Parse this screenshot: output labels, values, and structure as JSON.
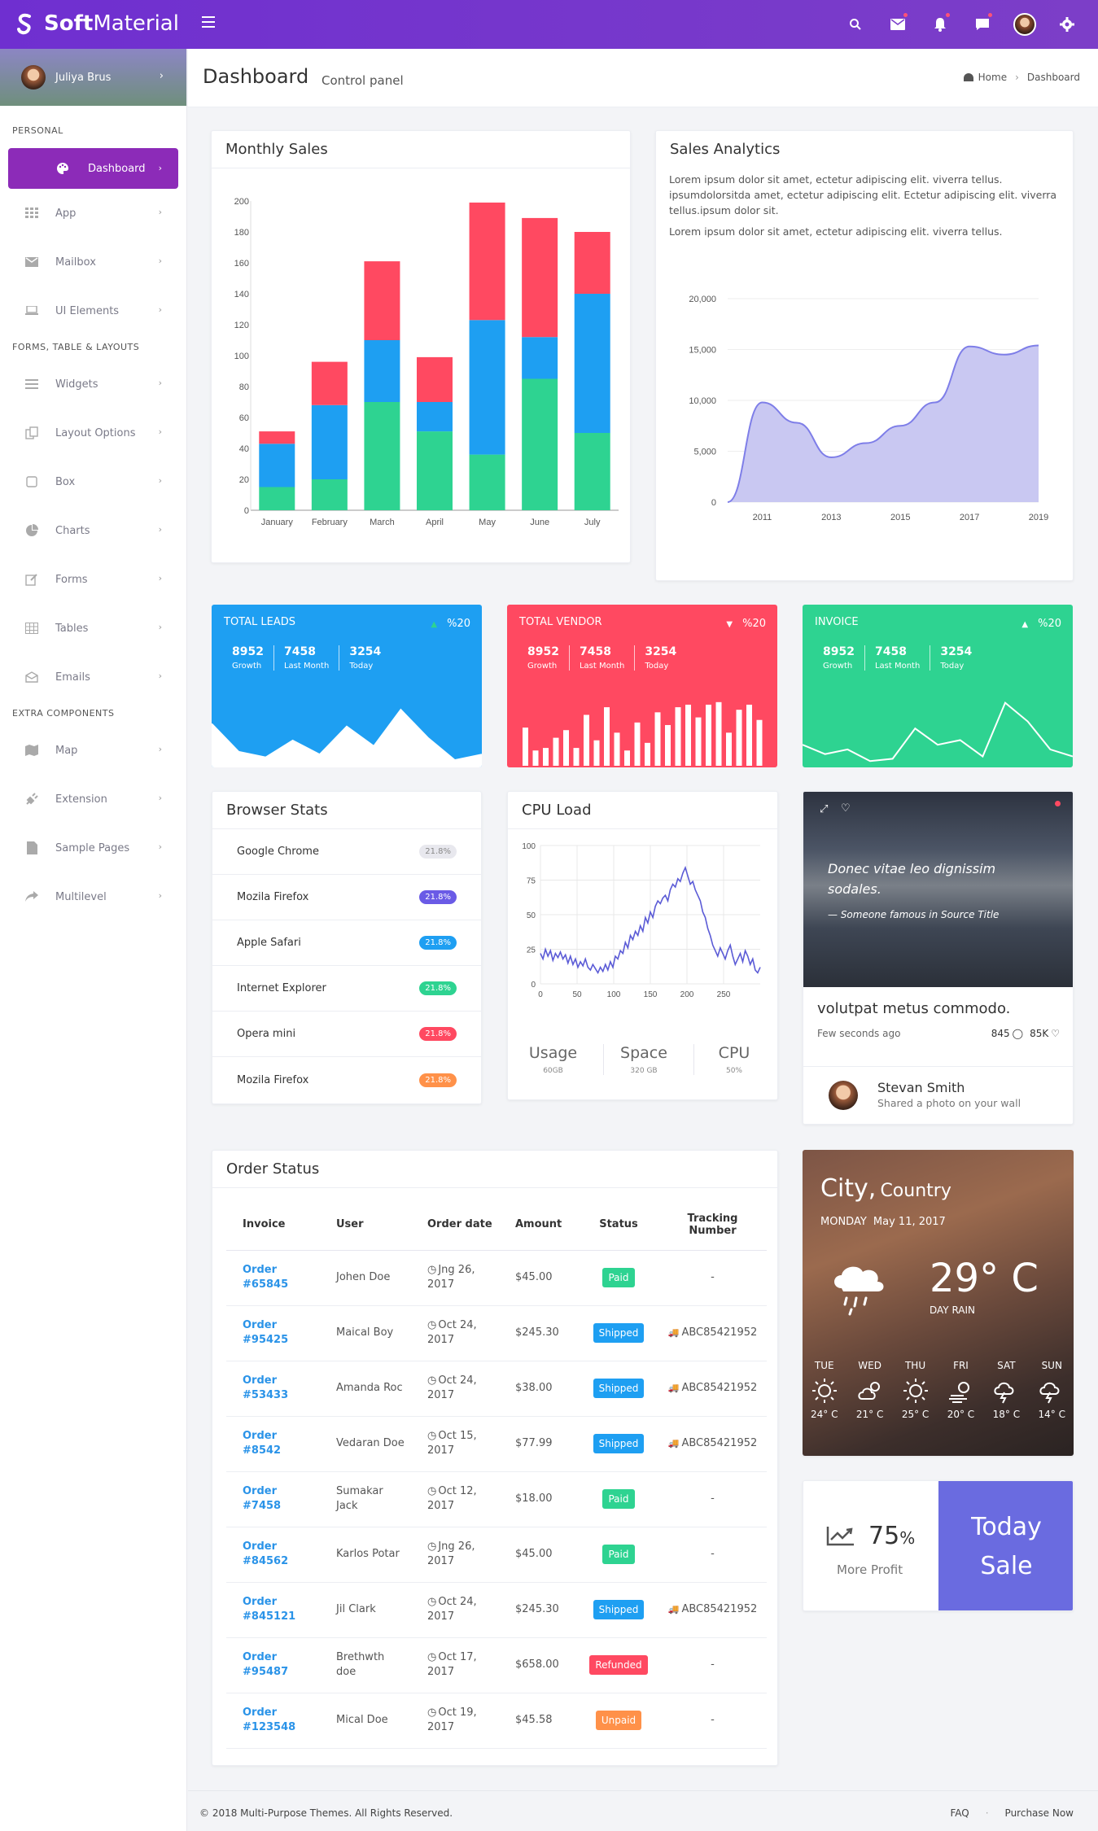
{
  "app": {
    "logo_bold": "Soft",
    "logo_light": "Material"
  },
  "topbar": {
    "icons": [
      "search-icon",
      "mail-icon",
      "bell-icon",
      "chat-icon",
      "avatar",
      "gear-icon"
    ]
  },
  "user": {
    "name": "Juliya Brus"
  },
  "sidebar": {
    "sections": [
      "PERSONAL",
      "FORMS, TABLE & LAYOUTS",
      "EXTRA COMPONENTS"
    ],
    "personal": [
      {
        "label": "Dashboard",
        "icon": "palette-icon"
      },
      {
        "label": "App",
        "icon": "grid-icon"
      },
      {
        "label": "Mailbox",
        "icon": "mail-icon"
      },
      {
        "label": "UI Elements",
        "icon": "laptop-icon"
      }
    ],
    "forms": [
      {
        "label": "Widgets",
        "icon": "list-icon"
      },
      {
        "label": "Layout Options",
        "icon": "copy-icon"
      },
      {
        "label": "Box",
        "icon": "square-icon"
      },
      {
        "label": "Charts",
        "icon": "pie-icon"
      },
      {
        "label": "Forms",
        "icon": "edit-icon"
      },
      {
        "label": "Tables",
        "icon": "table-icon"
      },
      {
        "label": "Emails",
        "icon": "envelope-open-icon"
      }
    ],
    "extra": [
      {
        "label": "Map",
        "icon": "map-icon"
      },
      {
        "label": "Extension",
        "icon": "plug-icon"
      },
      {
        "label": "Sample Pages",
        "icon": "file-icon"
      },
      {
        "label": "Multilevel",
        "icon": "share-icon"
      }
    ]
  },
  "header": {
    "title": "Dashboard",
    "subtitle": "Control panel",
    "breadcrumb": [
      "Home",
      "Dashboard"
    ]
  },
  "monthly_sales": {
    "title": "Monthly Sales"
  },
  "sales_analytics": {
    "title": "Sales Analytics",
    "para1": "Lorem ipsum dolor sit amet, ectetur adipiscing elit. viverra tellus. ipsumdolorsitda amet, ectetur adipiscing elit. Ectetur adipiscing elit. viverra tellus.ipsum dolor sit.",
    "para2": "Lorem ipsum dolor sit amet, ectetur adipiscing elit. viverra tellus."
  },
  "chart_data": [
    {
      "type": "bar",
      "stacked": true,
      "categories": [
        "January",
        "February",
        "March",
        "April",
        "May",
        "June",
        "July"
      ],
      "series": [
        {
          "values": [
            15,
            20,
            70,
            51,
            36,
            85,
            50
          ],
          "color": "#2ed391"
        },
        {
          "values": [
            28,
            48,
            40,
            19,
            87,
            27,
            90
          ],
          "color": "#1e9ff2"
        },
        {
          "values": [
            8,
            28,
            51,
            29,
            76,
            77,
            40
          ],
          "color": "#ff4961"
        }
      ],
      "yticks": [
        0,
        20,
        40,
        60,
        80,
        100,
        120,
        140,
        160,
        180,
        200
      ],
      "ylim": [
        0,
        200
      ]
    },
    {
      "type": "area",
      "x": [
        2010,
        2011,
        2012,
        2013,
        2014,
        2015,
        2016,
        2017,
        2018,
        2019
      ],
      "values": [
        0,
        9800,
        7800,
        4400,
        5800,
        7500,
        9800,
        15300,
        14500,
        15400
      ],
      "xticks": [
        "2011",
        "2013",
        "2015",
        "2017",
        "2019"
      ],
      "yticks": [
        "0",
        "5,000",
        "10,000",
        "15,000",
        "20,000"
      ],
      "ylim": [
        0,
        20000
      ],
      "color": "#7e7ee8"
    },
    {
      "type": "line",
      "yticks": [
        0,
        25,
        50,
        75,
        100
      ],
      "xticks": [
        0,
        50,
        100,
        150,
        200,
        250
      ],
      "ylim": [
        0,
        100
      ],
      "xlim": [
        0,
        300
      ],
      "color": "#5b5bd6",
      "values": [
        22,
        18,
        25,
        20,
        24,
        17,
        22,
        19,
        23,
        18,
        21,
        15,
        20,
        14,
        18,
        12,
        16,
        13,
        18,
        12,
        10,
        14,
        11,
        8,
        12,
        9,
        14,
        10,
        16,
        12,
        20,
        18,
        24,
        22,
        30,
        26,
        35,
        32,
        38,
        35,
        42,
        38,
        48,
        44,
        52,
        48,
        56,
        60,
        58,
        62,
        64,
        60,
        68,
        72,
        70,
        76,
        74,
        80,
        84,
        78,
        72,
        74,
        68,
        64,
        60,
        52,
        48,
        40,
        35,
        28,
        24,
        20,
        26,
        22,
        18,
        24,
        28,
        20,
        14,
        18,
        22,
        16,
        24,
        20,
        14,
        18,
        10,
        8,
        12
      ]
    },
    {
      "type": "area",
      "name": "TOTAL LEADS",
      "values": [
        30,
        10,
        6,
        18,
        8,
        28,
        14,
        40,
        20,
        4,
        8
      ],
      "ylim": [
        0,
        50
      ]
    },
    {
      "type": "bar",
      "name": "TOTAL VENDOR",
      "values": [
        30,
        12,
        14,
        22,
        28,
        14,
        40,
        20,
        46,
        26,
        12,
        34,
        18,
        42,
        32,
        46,
        48,
        38,
        48,
        50,
        26,
        44,
        48,
        36
      ],
      "ylim": [
        0,
        55
      ]
    },
    {
      "type": "line",
      "name": "INVOICE",
      "values": [
        18,
        10,
        14,
        4,
        6,
        32,
        18,
        22,
        8,
        54,
        38,
        14,
        8
      ],
      "ylim": [
        0,
        60
      ]
    }
  ],
  "stats": [
    {
      "title": "TOTAL LEADS",
      "pct": "%20",
      "dir": "up",
      "color": "#1e9ff2",
      "nums": [
        [
          "8952",
          "Growth"
        ],
        [
          "7458",
          "Last Month"
        ],
        [
          "3254",
          "Today"
        ]
      ]
    },
    {
      "title": "TOTAL VENDOR",
      "pct": "%20",
      "dir": "down",
      "color": "#ff4961",
      "nums": [
        [
          "8952",
          "Growth"
        ],
        [
          "7458",
          "Last Month"
        ],
        [
          "3254",
          "Today"
        ]
      ]
    },
    {
      "title": "INVOICE",
      "pct": "%20",
      "dir": "up",
      "color": "#2ed391",
      "nums": [
        [
          "8952",
          "Growth"
        ],
        [
          "7458",
          "Last Month"
        ],
        [
          "3254",
          "Today"
        ]
      ]
    }
  ],
  "browser_stats": {
    "title": "Browser Stats",
    "rows": [
      {
        "name": "Google Chrome",
        "value": "21.8%",
        "color": "#e8e8ee",
        "text": "#888"
      },
      {
        "name": "Mozila Firefox",
        "value": "21.8%",
        "color": "#6a5be6",
        "text": "#fff"
      },
      {
        "name": "Apple Safari",
        "value": "21.8%",
        "color": "#1e9ff2",
        "text": "#fff"
      },
      {
        "name": "Internet Explorer",
        "value": "21.8%",
        "color": "#2ed391",
        "text": "#fff"
      },
      {
        "name": "Opera mini",
        "value": "21.8%",
        "color": "#ff4961",
        "text": "#fff"
      },
      {
        "name": "Mozila Firefox",
        "value": "21.8%",
        "color": "#ff9149",
        "text": "#fff"
      }
    ]
  },
  "cpu_load": {
    "title": "CPU Load",
    "metrics": [
      {
        "label": "Usage",
        "sub": "60GB"
      },
      {
        "label": "Space",
        "sub": "320 GB"
      },
      {
        "label": "CPU",
        "sub": "50%"
      }
    ]
  },
  "social": {
    "quote": "Donec vitae leo dignissim sodales.",
    "cite": "— Someone famous in Source Title",
    "heading": "volutpat metus commodo.",
    "time": "Few seconds ago",
    "comments": "845",
    "likes": "85K",
    "user_name": "Stevan Smith",
    "user_action": "Shared a photo on your wall"
  },
  "order_status": {
    "title": "Order Status",
    "columns": [
      "Invoice",
      "User",
      "Order date",
      "Amount",
      "Status",
      "Tracking Number"
    ],
    "rows": [
      {
        "inv": "Order #65845",
        "user": "Johen Doe",
        "date": "Jng 26, 2017",
        "amount": "$45.00",
        "status": "Paid",
        "color": "#2ed391",
        "track": "-"
      },
      {
        "inv": "Order #95425",
        "user": "Maical Boy",
        "date": "Oct 24, 2017",
        "amount": "$245.30",
        "status": "Shipped",
        "color": "#1e9ff2",
        "track": "ABC85421952"
      },
      {
        "inv": "Order #53433",
        "user": "Amanda Roc",
        "date": "Oct 24, 2017",
        "amount": "$38.00",
        "status": "Shipped",
        "color": "#1e9ff2",
        "track": "ABC85421952"
      },
      {
        "inv": "Order #8542",
        "user": "Vedaran Doe",
        "date": "Oct 15, 2017",
        "amount": "$77.99",
        "status": "Shipped",
        "color": "#1e9ff2",
        "track": "ABC85421952"
      },
      {
        "inv": "Order #7458",
        "user": "Sumakar Jack",
        "date": "Oct 12, 2017",
        "amount": "$18.00",
        "status": "Paid",
        "color": "#2ed391",
        "track": "-"
      },
      {
        "inv": "Order #84562",
        "user": "Karlos Potar",
        "date": "Jng 26, 2017",
        "amount": "$45.00",
        "status": "Paid",
        "color": "#2ed391",
        "track": "-"
      },
      {
        "inv": "Order #845121",
        "user": "Jil Clark",
        "date": "Oct 24, 2017",
        "amount": "$245.30",
        "status": "Shipped",
        "color": "#1e9ff2",
        "track": "ABC85421952"
      },
      {
        "inv": "Order #95487",
        "user": "Brethwth doe",
        "date": "Oct 17, 2017",
        "amount": "$658.00",
        "status": "Refunded",
        "color": "#ff4961",
        "track": "-"
      },
      {
        "inv": "Order #123548",
        "user": "Mical Doe",
        "date": "Oct 19, 2017",
        "amount": "$45.58",
        "status": "Unpaid",
        "color": "#ff9149",
        "track": "-"
      }
    ]
  },
  "weather": {
    "city": "City,",
    "country": "Country",
    "date_day": "MONDAY",
    "date": "May 11, 2017",
    "temp": "29° C",
    "cond": "DAY RAIN",
    "days": [
      {
        "d": "TUE",
        "t": "24° C",
        "icon": "sun-icon"
      },
      {
        "d": "WED",
        "t": "21° C",
        "icon": "cloud-sun-icon"
      },
      {
        "d": "THU",
        "t": "25° C",
        "icon": "sun-icon"
      },
      {
        "d": "FRI",
        "t": "20° C",
        "icon": "wind-sun-icon"
      },
      {
        "d": "SAT",
        "t": "18° C",
        "icon": "storm-icon"
      },
      {
        "d": "SUN",
        "t": "14° C",
        "icon": "storm-icon"
      }
    ]
  },
  "profit": {
    "value": "75",
    "unit": "%",
    "label": "More Profit",
    "sale": "Today Sale"
  },
  "footer": {
    "copyright": "© 2018 Multi-Purpose Themes. All Rights Reserved.",
    "links": [
      "FAQ",
      "Purchase Now"
    ]
  }
}
